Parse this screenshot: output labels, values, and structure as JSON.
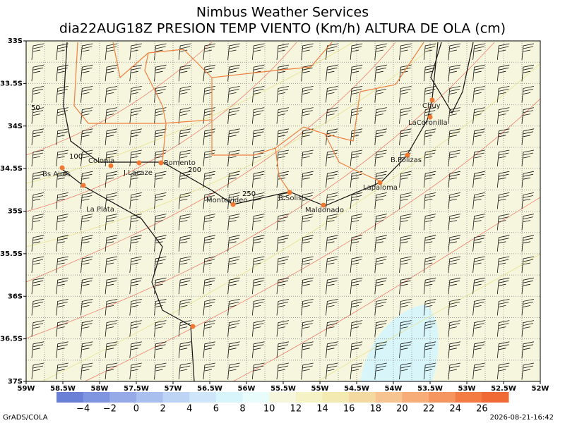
{
  "title": [
    "Nimbus Weather Services",
    "dia22AUG18Z PRESION TEMP VIENTO (Km/h) ALTURA DE OLA (cm)"
  ],
  "lat_labels": [
    "33S",
    "33.5S",
    "34S",
    "34.5S",
    "35S",
    "35.5S",
    "36S",
    "36.5S",
    "37S"
  ],
  "lon_labels": [
    "59W",
    "58.5W",
    "58W",
    "57.5W",
    "57W",
    "56.5W",
    "56W",
    "55.5W",
    "55W",
    "54.5W",
    "54W",
    "53.5W",
    "53W",
    "52.5W",
    "52W"
  ],
  "cities": [
    "Bs Aires",
    "Colonia",
    "J.Lacaze",
    "Romento",
    "La Plata",
    "Montevideo",
    "B.Solis",
    "Maldonado",
    "Lapaloma",
    "B.Polizas",
    "LaCoronilla",
    "Chuy"
  ],
  "contour_labels": [
    "50",
    "100",
    "200",
    "250"
  ],
  "colorbar": {
    "labels": [
      "−4",
      "−2",
      "0",
      "2",
      "4",
      "6",
      "8",
      "10",
      "12",
      "14",
      "16",
      "18",
      "20",
      "22",
      "24",
      "26"
    ],
    "colors": [
      "#6a7fd6",
      "#7f95e0",
      "#96aae8",
      "#a9c0ef",
      "#bdd4f5",
      "#cfe6fa",
      "#d9f5fc",
      "#e8fcfc",
      "#f6f6dc",
      "#f5f2c6",
      "#f2eab0",
      "#f3d9a0",
      "#f5c490",
      "#f7ad78",
      "#f59660",
      "#f37c45",
      "#f06a35"
    ]
  },
  "footer": {
    "left": "GrADS/COLA",
    "right": "2026-08-21-16:42"
  }
}
